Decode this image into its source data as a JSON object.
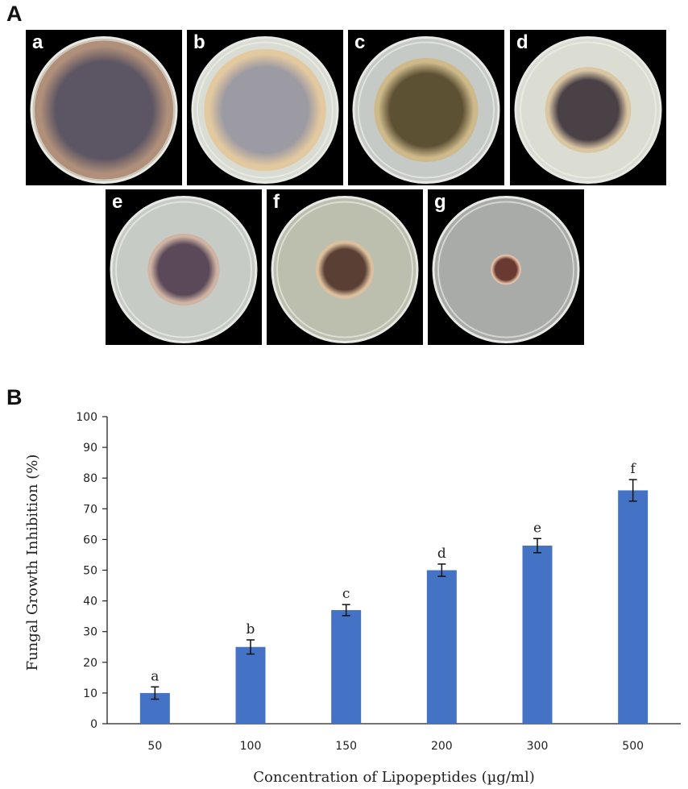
{
  "panel_a": {
    "letter": "A",
    "plates": [
      {
        "label": "a",
        "colony_fraction": 1.0,
        "colony": "#5c5563",
        "ring": "#b0907a",
        "agar": "#cfc6b8"
      },
      {
        "label": "b",
        "colony_fraction": 0.88,
        "colony": "#9c9aa2",
        "ring": "#e3c9a0",
        "agar": "#d9dcd3"
      },
      {
        "label": "c",
        "colony_fraction": 0.75,
        "colony": "#5d5134",
        "ring": "#cdb98a",
        "agar": "#c5cac6"
      },
      {
        "label": "d",
        "colony_fraction": 0.62,
        "colony": "#4a4147",
        "ring": "#d9c6a3",
        "agar": "#dcddd2"
      },
      {
        "label": "e",
        "colony_fraction": 0.52,
        "colony": "#5b4858",
        "ring": "#cfb4a4",
        "agar": "#c6ccc5"
      },
      {
        "label": "f",
        "colony_fraction": 0.42,
        "colony": "#5a3f34",
        "ring": "#dcc09e",
        "agar": "#bdbfae"
      },
      {
        "label": "g",
        "colony_fraction": 0.22,
        "colony": "#6a3a32",
        "ring": "#e3bfa6",
        "agar": "#a9aba8"
      }
    ]
  },
  "panel_b": {
    "letter": "B"
  },
  "chart_data": {
    "type": "bar",
    "categories": [
      "50",
      "100",
      "150",
      "200",
      "300",
      "500"
    ],
    "values": [
      10,
      25,
      37,
      50,
      58,
      76
    ],
    "errors": [
      2,
      2.3,
      1.8,
      2,
      2.3,
      3.5
    ],
    "significance_letters": [
      "a",
      "b",
      "c",
      "d",
      "e",
      "f"
    ],
    "xlabel": "Concentration of Lipopeptides (µg/ml)",
    "ylabel": "Fungal Growth Inhibition (%)",
    "ylim": [
      0,
      100
    ],
    "yticks": [
      0,
      10,
      20,
      30,
      40,
      50,
      60,
      70,
      80,
      90,
      100
    ],
    "bar_color": "#4472c4",
    "grid": false
  }
}
